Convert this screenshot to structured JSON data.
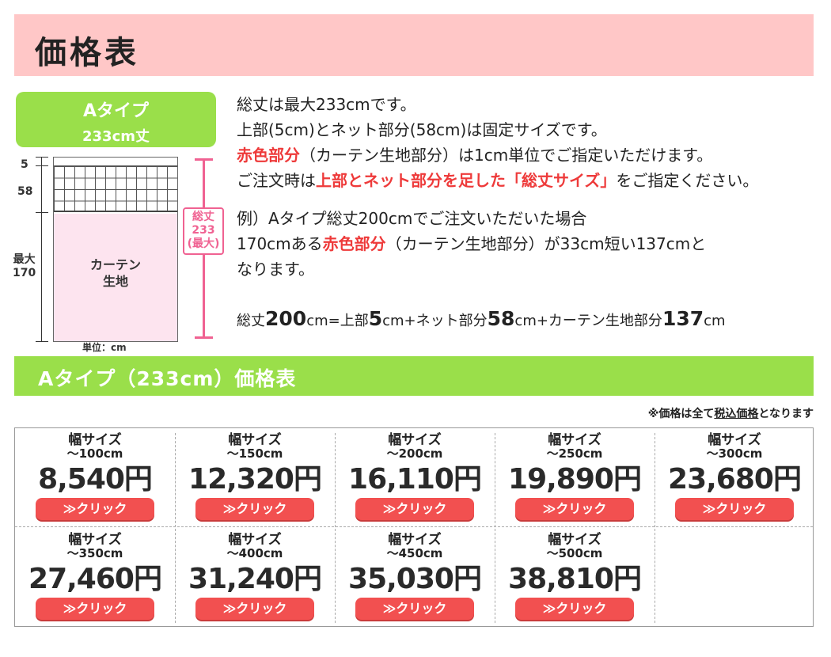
{
  "header": {
    "title": "価格表"
  },
  "type_badge": {
    "line1": "Aタイプ",
    "line2": "233cm丈"
  },
  "diagram": {
    "top_dim": "5",
    "net_dim": "58",
    "fabric_dim": "最大\n170",
    "fabric_label": "カーテン\n生地",
    "total_label": "総丈\n233\n(最大)",
    "unit": "単位：cm"
  },
  "description": {
    "line1": "総丈は最大233cmです。",
    "line2": "上部(5cm)とネット部分(58cm)は固定サイズです。",
    "line3_red": "赤色部分",
    "line3_rest": "（カーテン生地部分）は1cm単位でご指定いただけます。",
    "line4_pre": "ご注文時は",
    "line4_red": "上部とネット部分を足した「総丈サイズ」",
    "line4_post": "をご指定ください。",
    "example1": "例）Aタイプ総丈200cmでご注文いただいた場合",
    "example2_pre": "170cmある",
    "example2_red": "赤色部分",
    "example2_post": "（カーテン生地部分）が33cm短い137cmと",
    "example3": "なります。"
  },
  "formula": {
    "p1": "総丈",
    "v1": "200",
    "p2": "cm=上部",
    "v2": "5",
    "p3": "cm+ネット部分",
    "v3": "58",
    "p4": "cm+カーテン生地部分",
    "v4": "137",
    "p5": "cm"
  },
  "section": {
    "title": "Aタイプ（233cm）価格表"
  },
  "tax_note": {
    "pre": "※価格は全て",
    "underlined": "税込価格",
    "post": "となります"
  },
  "prices": [
    {
      "label": "幅サイズ",
      "range": "～100cm",
      "price": "8,540円",
      "button": "≫クリック"
    },
    {
      "label": "幅サイズ",
      "range": "～150cm",
      "price": "12,320円",
      "button": "≫クリック"
    },
    {
      "label": "幅サイズ",
      "range": "～200cm",
      "price": "16,110円",
      "button": "≫クリック"
    },
    {
      "label": "幅サイズ",
      "range": "～250cm",
      "price": "19,890円",
      "button": "≫クリック"
    },
    {
      "label": "幅サイズ",
      "range": "～300cm",
      "price": "23,680円",
      "button": "≫クリック"
    },
    {
      "label": "幅サイズ",
      "range": "～350cm",
      "price": "27,460円",
      "button": "≫クリック"
    },
    {
      "label": "幅サイズ",
      "range": "～400cm",
      "price": "31,240円",
      "button": "≫クリック"
    },
    {
      "label": "幅サイズ",
      "range": "～450cm",
      "price": "35,030円",
      "button": "≫クリック"
    },
    {
      "label": "幅サイズ",
      "range": "～500cm",
      "price": "38,810円",
      "button": "≫クリック"
    }
  ]
}
